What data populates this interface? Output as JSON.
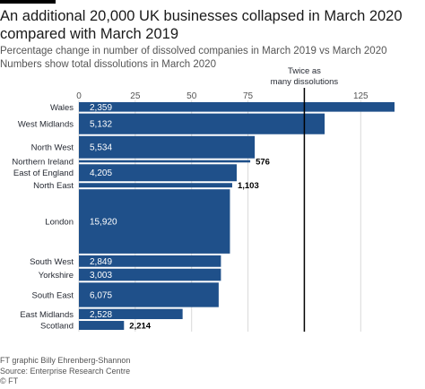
{
  "header": {
    "title": "An additional 20,000 UK businesses collapsed in March 2020 compared with March 2019",
    "subtitle_line1": "Percentage change in number of dissolved companies in March 2019 vs March 2020",
    "subtitle_line2": "Numbers show total dissolutions in March 2020"
  },
  "colors": {
    "bar": "#1f508a",
    "bar_separator": "#ffffff",
    "reference_line": "#000000",
    "grid": "#d9d9d9",
    "text": "#262a33"
  },
  "chart_data": {
    "type": "bar",
    "orientation": "horizontal",
    "variable_width": true,
    "categories": [
      "Wales",
      "West Midlands",
      "North West",
      "Northern Ireland",
      "East of England",
      "North East",
      "London",
      "South West",
      "Yorkshire",
      "South East",
      "East Midlands",
      "Scotland"
    ],
    "percent_change": [
      140,
      109,
      78,
      76,
      70,
      68,
      67,
      63,
      63,
      62,
      46,
      20
    ],
    "dissolutions": [
      2359,
      5132,
      5534,
      576,
      4205,
      1103,
      15920,
      2849,
      3003,
      6075,
      2528,
      2214
    ],
    "dissolution_labels": [
      "2,359",
      "5,132",
      "5,534",
      "576",
      "4,205",
      "1,103",
      "15,920",
      "2,849",
      "3,003",
      "6,075",
      "2,528",
      "2,214"
    ],
    "xticks": [
      0,
      25,
      50,
      75,
      125
    ],
    "xlim": [
      0,
      140
    ],
    "grid": true,
    "reference_line": {
      "value": 100,
      "label_line1": "Twice as",
      "label_line2": "many dissolutions"
    }
  },
  "footer": {
    "credit": "FT graphic Billy Ehrenberg-Shannon",
    "source": "Source: Enterprise Research Centre",
    "copyright": "© FT"
  }
}
